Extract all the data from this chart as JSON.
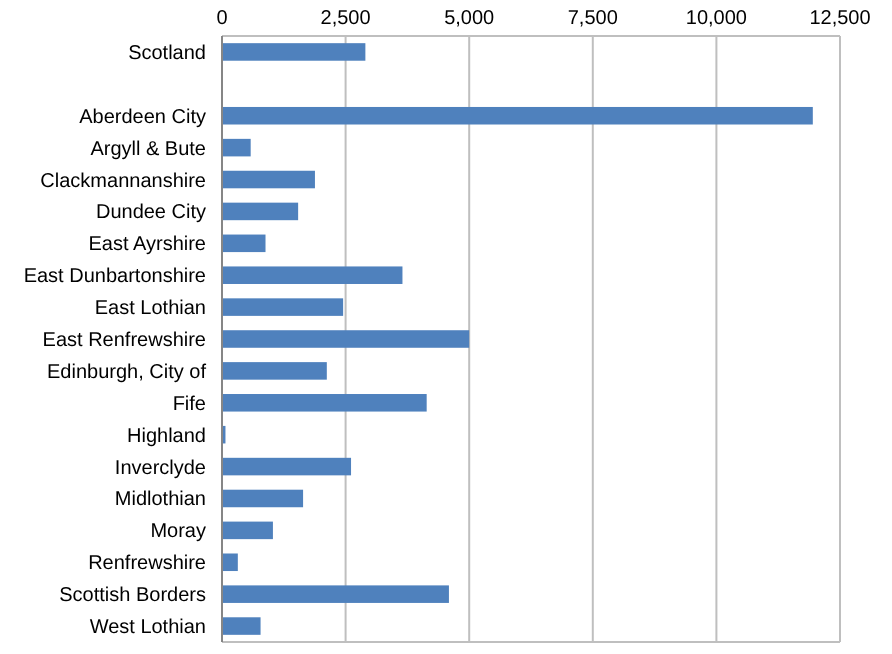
{
  "chart_data": {
    "type": "bar",
    "orientation": "horizontal",
    "categories": [
      "Scotland",
      null,
      "Aberdeen City",
      "Argyll & Bute",
      "Clackmannanshire",
      "Dundee City",
      "East Ayrshire",
      "East Dunbartonshire",
      "East Lothian",
      "East Renfrewshire",
      "Edinburgh, City of",
      "Fife",
      "Highland",
      "Inverclyde",
      "Midlothian",
      "Moray",
      "Renfrewshire",
      "Scottish Borders",
      "West Lothian"
    ],
    "values": [
      2900,
      null,
      11950,
      580,
      1880,
      1540,
      880,
      3650,
      2450,
      5000,
      2120,
      4140,
      70,
      2610,
      1640,
      1030,
      320,
      4590,
      780
    ],
    "color": "#4f81bd",
    "xlim": [
      0,
      12500
    ],
    "xticks": [
      {
        "value": 0,
        "label": "0"
      },
      {
        "value": 2500,
        "label": "2,500"
      },
      {
        "value": 5000,
        "label": "5,000"
      },
      {
        "value": 7500,
        "label": "7,500"
      },
      {
        "value": 10000,
        "label": "10,000"
      },
      {
        "value": 12500,
        "label": "12,500"
      }
    ],
    "grid": "x"
  }
}
